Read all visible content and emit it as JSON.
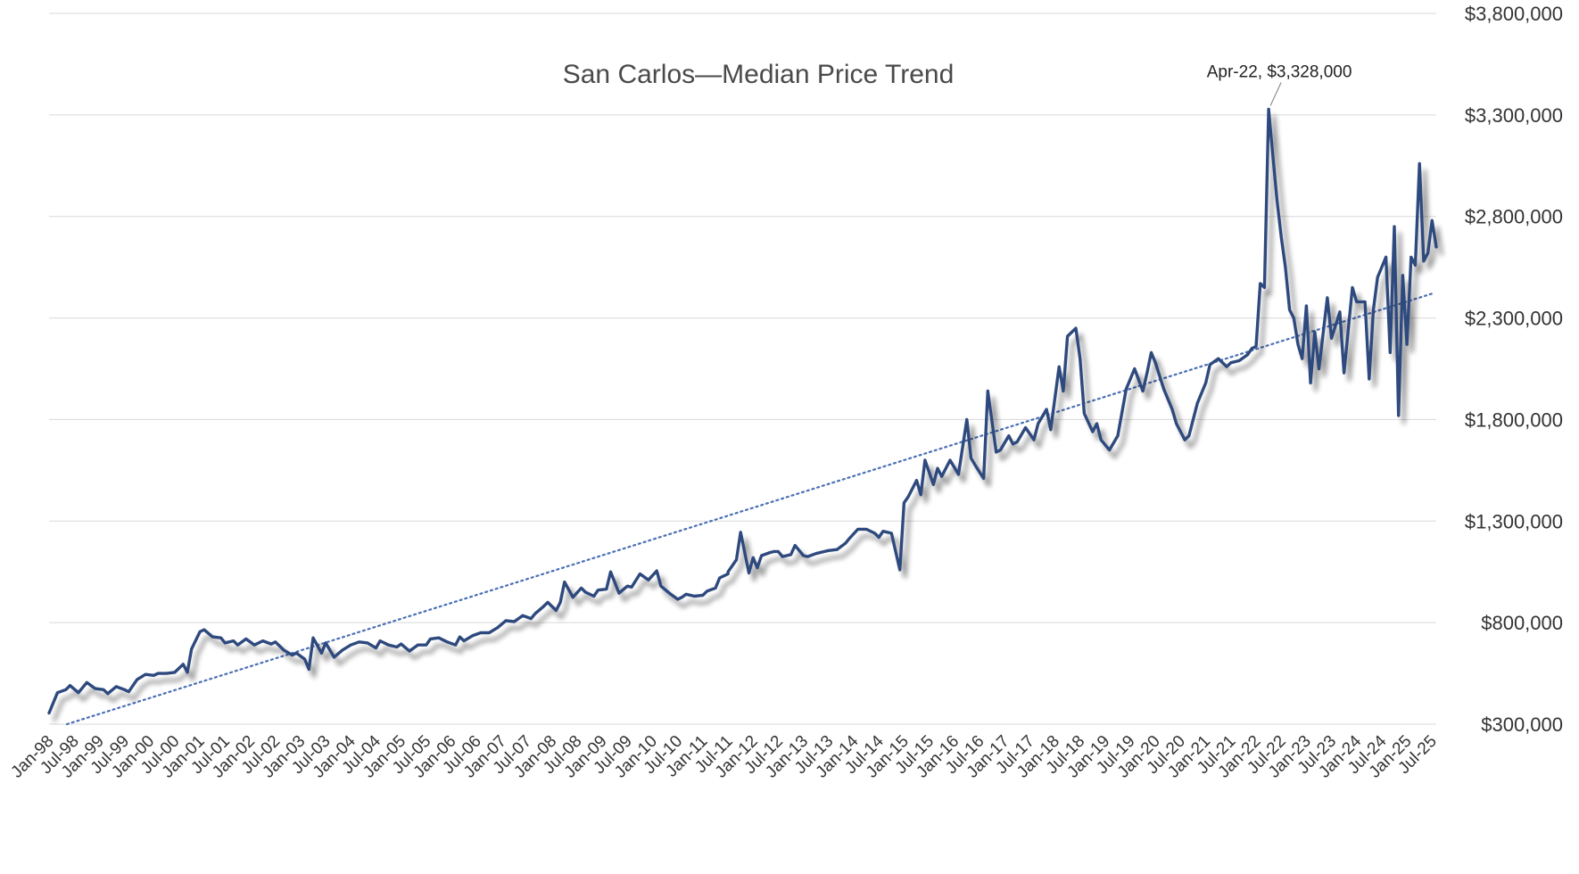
{
  "chart_data": {
    "type": "line",
    "title": "San Carlos—Median Price Trend",
    "xlabel": "",
    "ylabel": "",
    "ylim": [
      300000,
      3800000
    ],
    "yticks": [
      300000,
      800000,
      1300000,
      1800000,
      2300000,
      2800000,
      3300000,
      3800000
    ],
    "ytick_labels": [
      "$300,000",
      "$800,000",
      "$1,300,000",
      "$1,800,000",
      "$2,300,000",
      "$2,800,000",
      "$3,300,000",
      "$3,800,000"
    ],
    "xtick_labels": [
      "Jan-98",
      "Jul-98",
      "Jan-99",
      "Jul-99",
      "Jan-00",
      "Jul-00",
      "Jan-01",
      "Jul-01",
      "Jan-02",
      "Jul-02",
      "Jan-03",
      "Jul-03",
      "Jan-04",
      "Jul-04",
      "Jan-05",
      "Jul-05",
      "Jan-06",
      "Jul-06",
      "Jan-07",
      "Jul-07",
      "Jan-08",
      "Jul-08",
      "Jan-09",
      "Jul-09",
      "Jan-10",
      "Jul-10",
      "Jan-11",
      "Jul-11",
      "Jan-12",
      "Jul-12",
      "Jan-13",
      "Jul-13",
      "Jan-14",
      "Jul-14",
      "Jan-15",
      "Jul-15",
      "Jan-16",
      "Jul-16",
      "Jan-17",
      "Jul-17",
      "Jan-18",
      "Jul-18",
      "Jan-19",
      "Jul-19",
      "Jan-20",
      "Jul-20",
      "Jan-21",
      "Jul-21",
      "Jan-22",
      "Jul-22",
      "Jan-23",
      "Jul-23",
      "Jan-24",
      "Jul-24",
      "Jan-25",
      "Jul-25"
    ],
    "grid": true,
    "legend": "none",
    "colors": {
      "line": "#2e4a7d",
      "trend": "#4a6fb5",
      "grid": "#d9d9d9"
    },
    "annotation": {
      "label": "Apr-22, $3,328,000",
      "x": "Apr-22",
      "y": 3328000
    },
    "trendline": {
      "type": "linear",
      "dotted": true,
      "start": {
        "x": "Jan-98",
        "y": 300000
      },
      "end": {
        "x": "Jul-25",
        "y": 2420000
      }
    },
    "series": [
      {
        "name": "",
        "points": [
          [
            "Jan-98",
            355000
          ],
          [
            "Mar-98",
            455000
          ],
          [
            "May-98",
            470000
          ],
          [
            "Jun-98",
            490000
          ],
          [
            "Aug-98",
            455000
          ],
          [
            "Oct-98",
            505000
          ],
          [
            "Dec-98",
            475000
          ],
          [
            "Feb-99",
            470000
          ],
          [
            "Mar-99",
            450000
          ],
          [
            "May-99",
            485000
          ],
          [
            "Jul-99",
            470000
          ],
          [
            "Aug-99",
            460000
          ],
          [
            "Oct-99",
            520000
          ],
          [
            "Dec-99",
            545000
          ],
          [
            "Feb-00",
            540000
          ],
          [
            "Mar-00",
            550000
          ],
          [
            "May-00",
            550000
          ],
          [
            "Jul-00",
            555000
          ],
          [
            "Sep-00",
            595000
          ],
          [
            "Oct-00",
            555000
          ],
          [
            "Nov-00",
            670000
          ],
          [
            "Jan-01",
            755000
          ],
          [
            "Feb-01",
            765000
          ],
          [
            "Apr-01",
            730000
          ],
          [
            "Jun-01",
            725000
          ],
          [
            "Jul-01",
            700000
          ],
          [
            "Sep-01",
            710000
          ],
          [
            "Oct-01",
            690000
          ],
          [
            "Dec-01",
            720000
          ],
          [
            "Feb-02",
            690000
          ],
          [
            "Apr-02",
            710000
          ],
          [
            "Jun-02",
            695000
          ],
          [
            "Jul-02",
            705000
          ],
          [
            "Sep-02",
            665000
          ],
          [
            "Nov-02",
            640000
          ],
          [
            "Dec-02",
            650000
          ],
          [
            "Feb-03",
            620000
          ],
          [
            "Mar-03",
            570000
          ],
          [
            "Apr-03",
            725000
          ],
          [
            "Jun-03",
            650000
          ],
          [
            "Jul-03",
            700000
          ],
          [
            "Sep-03",
            630000
          ],
          [
            "Nov-03",
            665000
          ],
          [
            "Jan-04",
            690000
          ],
          [
            "Mar-04",
            705000
          ],
          [
            "May-04",
            700000
          ],
          [
            "Jul-04",
            675000
          ],
          [
            "Aug-04",
            710000
          ],
          [
            "Oct-04",
            690000
          ],
          [
            "Dec-04",
            680000
          ],
          [
            "Jan-05",
            695000
          ],
          [
            "Mar-05",
            660000
          ],
          [
            "May-05",
            690000
          ],
          [
            "Jul-05",
            690000
          ],
          [
            "Aug-05",
            720000
          ],
          [
            "Oct-05",
            725000
          ],
          [
            "Dec-05",
            705000
          ],
          [
            "Feb-06",
            690000
          ],
          [
            "Mar-06",
            730000
          ],
          [
            "Apr-06",
            710000
          ],
          [
            "Jun-06",
            735000
          ],
          [
            "Aug-06",
            750000
          ],
          [
            "Oct-06",
            750000
          ],
          [
            "Dec-06",
            775000
          ],
          [
            "Feb-07",
            810000
          ],
          [
            "Apr-07",
            805000
          ],
          [
            "Jun-07",
            835000
          ],
          [
            "Aug-07",
            820000
          ],
          [
            "Sep-07",
            845000
          ],
          [
            "Nov-07",
            880000
          ],
          [
            "Dec-07",
            900000
          ],
          [
            "Feb-08",
            860000
          ],
          [
            "Mar-08",
            900000
          ],
          [
            "Apr-08",
            1000000
          ],
          [
            "Jun-08",
            925000
          ],
          [
            "Aug-08",
            970000
          ],
          [
            "Sep-08",
            950000
          ],
          [
            "Nov-08",
            930000
          ],
          [
            "Dec-08",
            960000
          ],
          [
            "Feb-09",
            965000
          ],
          [
            "Mar-09",
            1050000
          ],
          [
            "May-09",
            945000
          ],
          [
            "Jul-09",
            980000
          ],
          [
            "Aug-09",
            975000
          ],
          [
            "Oct-09",
            1040000
          ],
          [
            "Dec-09",
            1010000
          ],
          [
            "Feb-10",
            1055000
          ],
          [
            "Mar-10",
            980000
          ],
          [
            "May-10",
            945000
          ],
          [
            "Jul-10",
            915000
          ],
          [
            "Aug-10",
            925000
          ],
          [
            "Sep-10",
            940000
          ],
          [
            "Nov-10",
            930000
          ],
          [
            "Jan-11",
            935000
          ],
          [
            "Feb-11",
            955000
          ],
          [
            "Apr-11",
            970000
          ],
          [
            "May-11",
            1020000
          ],
          [
            "Jul-11",
            1040000
          ],
          [
            "Jul-11",
            1050000
          ],
          [
            "Sep-11",
            1110000
          ],
          [
            "Oct-11",
            1245000
          ],
          [
            "Dec-11",
            1045000
          ],
          [
            "Jan-12",
            1120000
          ],
          [
            "Feb-12",
            1070000
          ],
          [
            "Mar-12",
            1130000
          ],
          [
            "May-12",
            1145000
          ],
          [
            "Jun-12",
            1150000
          ],
          [
            "Jul-12",
            1150000
          ],
          [
            "Aug-12",
            1125000
          ],
          [
            "Oct-12",
            1135000
          ],
          [
            "Nov-12",
            1180000
          ],
          [
            "Jan-13",
            1130000
          ],
          [
            "Feb-13",
            1125000
          ],
          [
            "Apr-13",
            1140000
          ],
          [
            "Jun-13",
            1150000
          ],
          [
            "Jul-13",
            1155000
          ],
          [
            "Sep-13",
            1160000
          ],
          [
            "Nov-13",
            1190000
          ],
          [
            "Dec-13",
            1215000
          ],
          [
            "Feb-14",
            1260000
          ],
          [
            "Apr-14",
            1260000
          ],
          [
            "Jun-14",
            1240000
          ],
          [
            "Jul-14",
            1220000
          ],
          [
            "Aug-14",
            1250000
          ],
          [
            "Oct-14",
            1240000
          ],
          [
            "Dec-14",
            1060000
          ],
          [
            "Jan-15",
            1390000
          ],
          [
            "Feb-15",
            1420000
          ],
          [
            "Apr-15",
            1500000
          ],
          [
            "May-15",
            1430000
          ],
          [
            "Jun-15",
            1600000
          ],
          [
            "Aug-15",
            1480000
          ],
          [
            "Sep-15",
            1560000
          ],
          [
            "Oct-15",
            1520000
          ],
          [
            "Dec-15",
            1600000
          ],
          [
            "Feb-16",
            1530000
          ],
          [
            "Apr-16",
            1800000
          ],
          [
            "May-16",
            1610000
          ],
          [
            "Jun-16",
            1575000
          ],
          [
            "Aug-16",
            1510000
          ],
          [
            "Sep-16",
            1940000
          ],
          [
            "Nov-16",
            1640000
          ],
          [
            "Dec-16",
            1650000
          ],
          [
            "Feb-17",
            1720000
          ],
          [
            "Mar-17",
            1680000
          ],
          [
            "Apr-17",
            1690000
          ],
          [
            "Jun-17",
            1760000
          ],
          [
            "Aug-17",
            1700000
          ],
          [
            "Sep-17",
            1780000
          ],
          [
            "Nov-17",
            1850000
          ],
          [
            "Dec-17",
            1750000
          ],
          [
            "Feb-18",
            2060000
          ],
          [
            "Mar-18",
            1940000
          ],
          [
            "Apr-18",
            2210000
          ],
          [
            "Jun-18",
            2250000
          ],
          [
            "Jul-18",
            2100000
          ],
          [
            "Aug-18",
            1830000
          ],
          [
            "Oct-18",
            1740000
          ],
          [
            "Nov-18",
            1780000
          ],
          [
            "Dec-18",
            1700000
          ],
          [
            "Feb-19",
            1650000
          ],
          [
            "Apr-19",
            1720000
          ],
          [
            "Jun-19",
            1950000
          ],
          [
            "Jul-19",
            2000000
          ],
          [
            "Aug-19",
            2050000
          ],
          [
            "Oct-19",
            1940000
          ],
          [
            "Nov-19",
            2030000
          ],
          [
            "Dec-19",
            2130000
          ],
          [
            "Jan-20",
            2080000
          ],
          [
            "Mar-20",
            1950000
          ],
          [
            "May-20",
            1850000
          ],
          [
            "Jun-20",
            1780000
          ],
          [
            "Aug-20",
            1700000
          ],
          [
            "Sep-20",
            1720000
          ],
          [
            "Nov-20",
            1880000
          ],
          [
            "Jan-21",
            1980000
          ],
          [
            "Feb-21",
            2070000
          ],
          [
            "Apr-21",
            2100000
          ],
          [
            "Jun-21",
            2060000
          ],
          [
            "Jul-21",
            2080000
          ],
          [
            "Sep-21",
            2090000
          ],
          [
            "Nov-21",
            2120000
          ],
          [
            "Dec-21",
            2150000
          ],
          [
            "Jan-22",
            2160000
          ],
          [
            "Feb-22",
            2470000
          ],
          [
            "Mar-22",
            2450000
          ],
          [
            "Apr-22",
            3328000
          ],
          [
            "May-22",
            3100000
          ],
          [
            "Jun-22",
            2880000
          ],
          [
            "Jul-22",
            2700000
          ],
          [
            "Aug-22",
            2550000
          ],
          [
            "Sep-22",
            2340000
          ],
          [
            "Oct-22",
            2300000
          ],
          [
            "Nov-22",
            2170000
          ],
          [
            "Dec-22",
            2100000
          ],
          [
            "Jan-23",
            2360000
          ],
          [
            "Feb-23",
            1980000
          ],
          [
            "Mar-23",
            2230000
          ],
          [
            "Apr-23",
            2050000
          ],
          [
            "Jun-23",
            2400000
          ],
          [
            "Jul-23",
            2200000
          ],
          [
            "Sep-23",
            2330000
          ],
          [
            "Oct-23",
            2030000
          ],
          [
            "Dec-23",
            2450000
          ],
          [
            "Jan-24",
            2380000
          ],
          [
            "Mar-24",
            2380000
          ],
          [
            "Apr-24",
            2000000
          ],
          [
            "May-24",
            2340000
          ],
          [
            "Jun-24",
            2500000
          ],
          [
            "Aug-24",
            2600000
          ],
          [
            "Sep-24",
            2130000
          ],
          [
            "Oct-24",
            2750000
          ],
          [
            "Nov-24",
            1820000
          ],
          [
            "Dec-24",
            2510000
          ],
          [
            "Jan-25",
            2170000
          ],
          [
            "Feb-25",
            2600000
          ],
          [
            "Mar-25",
            2560000
          ],
          [
            "Apr-25",
            3060000
          ],
          [
            "May-25",
            2580000
          ],
          [
            "Jun-25",
            2620000
          ],
          [
            "Jul-25",
            2780000
          ],
          [
            "Aug-25",
            2650000
          ]
        ]
      }
    ]
  }
}
